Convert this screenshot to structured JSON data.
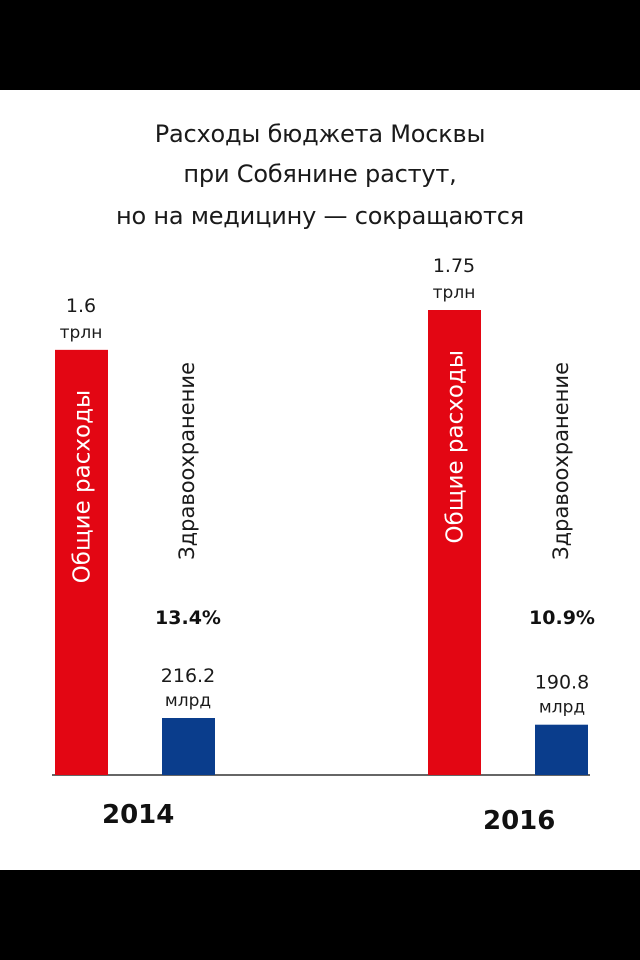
{
  "title_lines": [
    "Расходы бюджета Москвы",
    "при Собянине растут,",
    "но на медицину — сокращаются"
  ],
  "colors": {
    "total": "#e30613",
    "health": "#0a3d8c",
    "axis": "#333333"
  },
  "chart_data": {
    "type": "bar",
    "title": "Расходы бюджета Москвы при Собянине растут, но на медицину — сокращаются",
    "categories": [
      "2014",
      "2016"
    ],
    "series": [
      {
        "name": "Общие расходы",
        "values": [
          1600,
          1750
        ],
        "value_labels": [
          [
            "1.6",
            "трлн"
          ],
          [
            "1.75",
            "трлн"
          ]
        ]
      },
      {
        "name": "Здравоохранение",
        "values": [
          216.2,
          190.8
        ],
        "value_labels": [
          [
            "216.2",
            "млрд"
          ],
          [
            "190.8",
            "млрд"
          ]
        ],
        "share_labels": [
          "13.4%",
          "10.9%"
        ]
      }
    ]
  }
}
